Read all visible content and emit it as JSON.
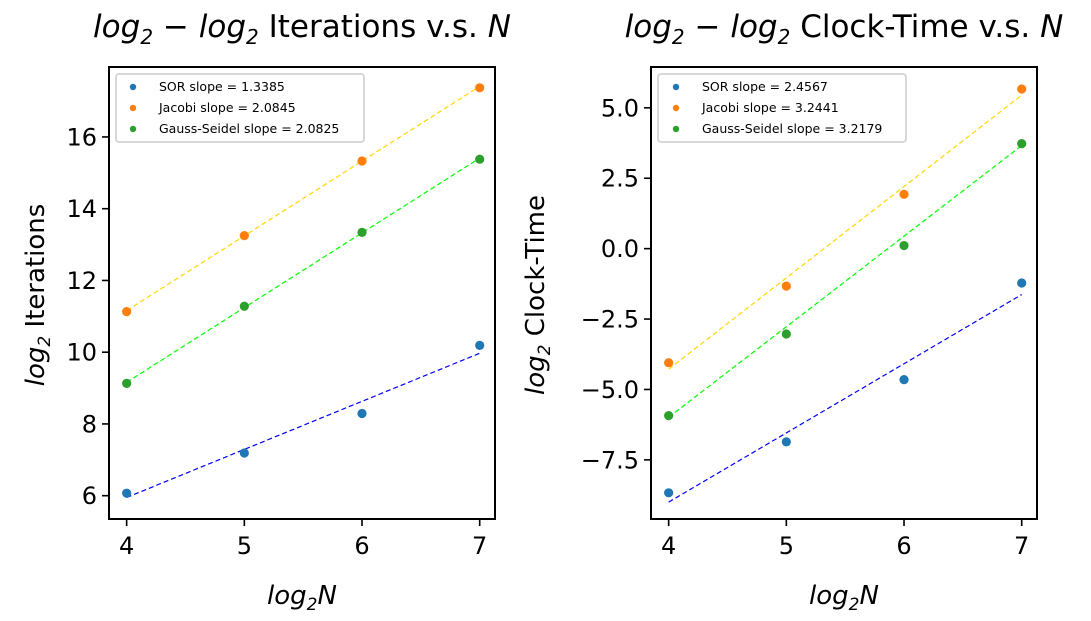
{
  "chart_data": [
    {
      "type": "scatter",
      "title": "log₂ − log₂ Iterations v.s. N",
      "title_parts": {
        "a": "log",
        "b": "2",
        "c": " − ",
        "d": "log",
        "e": "2",
        "f": " Iterations v.s. ",
        "g": "N"
      },
      "xlabel": "log₂N",
      "xlabel_parts": {
        "a": "log",
        "b": "2",
        "c": "N"
      },
      "ylabel": "log₂ Iterations",
      "ylabel_parts": {
        "a": "log",
        "b": "2",
        "c": " Iterations"
      },
      "xlim": [
        3.85,
        7.13
      ],
      "ylim": [
        5.35,
        17.95
      ],
      "xticks": [
        4,
        5,
        6,
        7
      ],
      "xtick_labels": [
        "4",
        "5",
        "6",
        "7"
      ],
      "yticks": [
        6,
        8,
        10,
        12,
        14,
        16
      ],
      "ytick_labels": [
        "6",
        "8",
        "10",
        "12",
        "14",
        "16"
      ],
      "grid": false,
      "legend_position": "upper-left",
      "series": [
        {
          "name": "SOR slope = 1.3385",
          "color": "#1f77b4",
          "fit_color": "#0000ff",
          "x": [
            4,
            5,
            6,
            7
          ],
          "y": [
            6.07,
            7.19,
            8.29,
            10.19
          ],
          "fit": [
            [
              4,
              5.95
            ],
            [
              7,
              9.97
            ]
          ]
        },
        {
          "name": "Jacobi slope = 2.0845",
          "color": "#ff7f0e",
          "fit_color": "#ffd700",
          "x": [
            4,
            5,
            6,
            7
          ],
          "y": [
            11.13,
            13.25,
            15.33,
            17.37
          ],
          "fit": [
            [
              4,
              11.16
            ],
            [
              7,
              17.41
            ]
          ]
        },
        {
          "name": "Gauss-Seidel slope = 2.0825",
          "color": "#2ca02c",
          "fit_color": "#00ff00",
          "x": [
            4,
            5,
            6,
            7
          ],
          "y": [
            9.13,
            11.28,
            13.34,
            15.38
          ],
          "fit": [
            [
              4,
              9.16
            ],
            [
              7,
              15.41
            ]
          ]
        }
      ]
    },
    {
      "type": "scatter",
      "title": "log₂ − log₂ Clock-Time v.s. N",
      "title_parts": {
        "a": "log",
        "b": "2",
        "c": " − ",
        "d": "log",
        "e": "2",
        "f": " Clock-Time v.s. ",
        "g": "N"
      },
      "xlabel": "log₂N",
      "xlabel_parts": {
        "a": "log",
        "b": "2",
        "c": "N"
      },
      "ylabel": "log₂ Clock-Time",
      "ylabel_parts": {
        "a": "log",
        "b": "2",
        "c": " Clock-Time"
      },
      "xlim": [
        3.85,
        7.13
      ],
      "ylim": [
        -9.6,
        6.45
      ],
      "xticks": [
        4,
        5,
        6,
        7
      ],
      "xtick_labels": [
        "4",
        "5",
        "6",
        "7"
      ],
      "yticks": [
        -7.5,
        -5.0,
        -2.5,
        0.0,
        2.5,
        5.0
      ],
      "ytick_labels": [
        "−7.5",
        "−5.0",
        "−2.5",
        "0.0",
        "2.5",
        "5.0"
      ],
      "grid": false,
      "legend_position": "upper-left",
      "series": [
        {
          "name": "SOR slope = 2.4567",
          "color": "#1f77b4",
          "fit_color": "#0000ff",
          "x": [
            4,
            5,
            6,
            7
          ],
          "y": [
            -8.67,
            -6.86,
            -4.65,
            -1.22
          ],
          "fit": [
            [
              4,
              -9.0
            ],
            [
              7,
              -1.63
            ]
          ]
        },
        {
          "name": "Jacobi slope = 3.2441",
          "color": "#ff7f0e",
          "fit_color": "#ffd700",
          "x": [
            4,
            5,
            6,
            7
          ],
          "y": [
            -4.05,
            -1.33,
            1.93,
            5.67
          ],
          "fit": [
            [
              4,
              -4.28
            ],
            [
              7,
              5.45
            ]
          ]
        },
        {
          "name": "Gauss-Seidel slope = 3.2179",
          "color": "#2ca02c",
          "fit_color": "#00ff00",
          "x": [
            4,
            5,
            6,
            7
          ],
          "y": [
            -5.93,
            -3.03,
            0.11,
            3.73
          ],
          "fit": [
            [
              4,
              -5.99
            ],
            [
              7,
              3.66
            ]
          ]
        }
      ]
    }
  ]
}
